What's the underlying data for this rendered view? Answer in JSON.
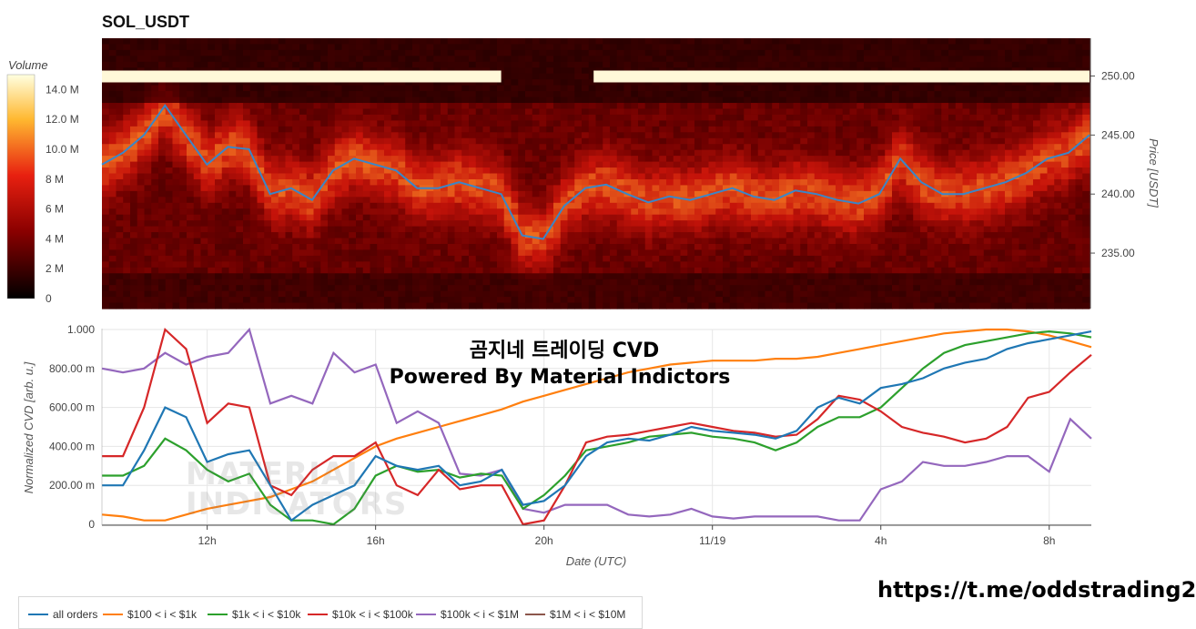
{
  "title": "SOL_USDT",
  "overlay": {
    "line1": "곰지네 트레이딩 CVD",
    "line2": "Powered By Material Indictors",
    "url": "https://t.me/oddstrading2",
    "watermark_line1": "MATERIAL",
    "watermark_line2": "INDICATORS"
  },
  "colors": {
    "price_line": "#3a86c8",
    "all_orders": "#1f77b4",
    "s100": "#ff7f0e",
    "s1k": "#2ca02c",
    "s10k": "#d62728",
    "s100k": "#9467bd",
    "s1m": "#8c564b"
  },
  "chart_data": [
    {
      "type": "heatmap",
      "title": "SOL_USDT",
      "colorbar_title": "Volume",
      "colorbar_ticks": [
        "14.0 M",
        "12.0 M",
        "10.0 M",
        "8 M",
        "6 M",
        "4 M",
        "2 M",
        "0"
      ],
      "colorbar_values": [
        14,
        12,
        10,
        8,
        6,
        4,
        2,
        0
      ],
      "ylabel": "Price [USDT]",
      "y_ticks": [
        "250.00",
        "245.00",
        "240.00",
        "235.00"
      ],
      "y_tick_values": [
        250,
        245,
        240,
        235
      ],
      "ylim": [
        230.3,
        253.2
      ],
      "x_range_hours": [
        9.5,
        33
      ],
      "bright_band_price": 250.0,
      "price_series": {
        "name": "price",
        "x": [
          9.5,
          10,
          10.5,
          11,
          11.5,
          12,
          12.5,
          13,
          13.5,
          14,
          14.5,
          15,
          15.5,
          16,
          16.5,
          17,
          17.5,
          18,
          18.5,
          19,
          19.5,
          20,
          20.5,
          21,
          21.5,
          22,
          22.5,
          23,
          23.5,
          24,
          24.5,
          25,
          25.5,
          26,
          26.5,
          27,
          27.5,
          28,
          28.5,
          29,
          29.5,
          30,
          30.5,
          31,
          31.5,
          32,
          32.5,
          33
        ],
        "y": [
          242.5,
          243.5,
          245,
          247.5,
          245,
          242.5,
          244,
          243.8,
          240,
          240.5,
          239.5,
          242,
          243,
          242.5,
          242,
          240.5,
          240.5,
          241,
          240.5,
          240,
          236.5,
          236.2,
          239,
          240.5,
          240.8,
          240,
          239.3,
          239.8,
          239.5,
          240,
          240.5,
          239.8,
          239.5,
          240.3,
          240,
          239.5,
          239.2,
          240,
          243,
          241,
          240,
          240,
          240.5,
          241,
          241.8,
          243,
          243.5,
          245
        ]
      }
    },
    {
      "type": "line",
      "xlabel": "Date (UTC)",
      "ylabel": "Normalized CVD [arb. u.]",
      "x_ticks": [
        "12h",
        "16h",
        "20h",
        "11/19",
        "4h",
        "8h"
      ],
      "x_tick_values": [
        12,
        16,
        20,
        24,
        28,
        32
      ],
      "y_ticks": [
        "1.000",
        "800.00 m",
        "600.00 m",
        "400.00 m",
        "200.00 m",
        "0"
      ],
      "y_tick_values": [
        1.0,
        0.8,
        0.6,
        0.4,
        0.2,
        0
      ],
      "ylim": [
        0,
        1
      ],
      "xlim": [
        9.5,
        33
      ],
      "series": [
        {
          "name": "all orders",
          "x": [
            9.5,
            10,
            10.5,
            11,
            11.5,
            12,
            12.5,
            13,
            13.5,
            14,
            14.5,
            15,
            15.5,
            16,
            16.5,
            17,
            17.5,
            18,
            18.5,
            19,
            19.5,
            20,
            20.5,
            21,
            21.5,
            22,
            22.5,
            23,
            23.5,
            24,
            24.5,
            25,
            25.5,
            26,
            26.5,
            27,
            27.5,
            28,
            28.5,
            29,
            29.5,
            30,
            30.5,
            31,
            31.5,
            32,
            32.5,
            33
          ],
          "y": [
            0.2,
            0.2,
            0.38,
            0.6,
            0.55,
            0.32,
            0.36,
            0.38,
            0.2,
            0.02,
            0.1,
            0.15,
            0.2,
            0.35,
            0.3,
            0.28,
            0.3,
            0.2,
            0.22,
            0.28,
            0.1,
            0.12,
            0.2,
            0.35,
            0.42,
            0.44,
            0.43,
            0.46,
            0.5,
            0.48,
            0.47,
            0.46,
            0.44,
            0.48,
            0.6,
            0.65,
            0.62,
            0.7,
            0.72,
            0.75,
            0.8,
            0.83,
            0.85,
            0.9,
            0.93,
            0.95,
            0.97,
            0.99
          ]
        },
        {
          "name": "$100 < i < $1k",
          "x": [
            9.5,
            10,
            10.5,
            11,
            11.5,
            12,
            12.5,
            13,
            13.5,
            14,
            14.5,
            15,
            15.5,
            16,
            16.5,
            17,
            17.5,
            18,
            18.5,
            19,
            19.5,
            20,
            20.5,
            21,
            21.5,
            22,
            22.5,
            23,
            23.5,
            24,
            24.5,
            25,
            25.5,
            26,
            26.5,
            27,
            27.5,
            28,
            28.5,
            29,
            29.5,
            30,
            30.5,
            31,
            31.5,
            32,
            32.5,
            33
          ],
          "y": [
            0.05,
            0.04,
            0.02,
            0.02,
            0.05,
            0.08,
            0.1,
            0.12,
            0.14,
            0.18,
            0.22,
            0.28,
            0.34,
            0.4,
            0.44,
            0.47,
            0.5,
            0.53,
            0.56,
            0.59,
            0.63,
            0.66,
            0.69,
            0.72,
            0.75,
            0.78,
            0.8,
            0.82,
            0.83,
            0.84,
            0.84,
            0.84,
            0.85,
            0.85,
            0.86,
            0.88,
            0.9,
            0.92,
            0.94,
            0.96,
            0.98,
            0.99,
            1.0,
            1.0,
            0.99,
            0.97,
            0.94,
            0.91
          ]
        },
        {
          "name": "$1k < i < $10k",
          "x": [
            9.5,
            10,
            10.5,
            11,
            11.5,
            12,
            12.5,
            13,
            13.5,
            14,
            14.5,
            15,
            15.5,
            16,
            16.5,
            17,
            17.5,
            18,
            18.5,
            19,
            19.5,
            20,
            20.5,
            21,
            21.5,
            22,
            22.5,
            23,
            23.5,
            24,
            24.5,
            25,
            25.5,
            26,
            26.5,
            27,
            27.5,
            28,
            28.5,
            29,
            29.5,
            30,
            30.5,
            31,
            31.5,
            32,
            32.5,
            33
          ],
          "y": [
            0.25,
            0.25,
            0.3,
            0.44,
            0.38,
            0.28,
            0.22,
            0.26,
            0.1,
            0.02,
            0.02,
            0.0,
            0.08,
            0.25,
            0.3,
            0.27,
            0.28,
            0.24,
            0.26,
            0.25,
            0.08,
            0.15,
            0.25,
            0.38,
            0.4,
            0.42,
            0.45,
            0.46,
            0.47,
            0.45,
            0.44,
            0.42,
            0.38,
            0.42,
            0.5,
            0.55,
            0.55,
            0.6,
            0.7,
            0.8,
            0.88,
            0.92,
            0.94,
            0.96,
            0.98,
            0.99,
            0.98,
            0.96
          ]
        },
        {
          "name": "$10k < i < $100k",
          "x": [
            9.5,
            10,
            10.5,
            11,
            11.5,
            12,
            12.5,
            13,
            13.5,
            14,
            14.5,
            15,
            15.5,
            16,
            16.5,
            17,
            17.5,
            18,
            18.5,
            19,
            19.5,
            20,
            20.5,
            21,
            21.5,
            22,
            22.5,
            23,
            23.5,
            24,
            24.5,
            25,
            25.5,
            26,
            26.5,
            27,
            27.5,
            28,
            28.5,
            29,
            29.5,
            30,
            30.5,
            31,
            31.5,
            32,
            32.5,
            33
          ],
          "y": [
            0.35,
            0.35,
            0.6,
            1.0,
            0.9,
            0.52,
            0.62,
            0.6,
            0.2,
            0.15,
            0.28,
            0.35,
            0.35,
            0.42,
            0.2,
            0.15,
            0.28,
            0.18,
            0.2,
            0.2,
            0.0,
            0.02,
            0.2,
            0.42,
            0.45,
            0.46,
            0.48,
            0.5,
            0.52,
            0.5,
            0.48,
            0.47,
            0.45,
            0.46,
            0.54,
            0.66,
            0.64,
            0.58,
            0.5,
            0.47,
            0.45,
            0.42,
            0.44,
            0.5,
            0.65,
            0.68,
            0.78,
            0.87
          ]
        },
        {
          "name": "$100k < i < $1M",
          "x": [
            9.5,
            10,
            10.5,
            11,
            11.5,
            12,
            12.5,
            13,
            13.5,
            14,
            14.5,
            15,
            15.5,
            16,
            16.5,
            17,
            17.5,
            18,
            18.5,
            19,
            19.5,
            20,
            20.5,
            21,
            21.5,
            22,
            22.5,
            23,
            23.5,
            24,
            24.5,
            25,
            25.5,
            26,
            26.5,
            27,
            27.5,
            28,
            28.5,
            29,
            29.5,
            30,
            30.5,
            31,
            31.5,
            32,
            32.5,
            33
          ],
          "y": [
            0.8,
            0.78,
            0.8,
            0.88,
            0.82,
            0.86,
            0.88,
            1.0,
            0.62,
            0.66,
            0.62,
            0.88,
            0.78,
            0.82,
            0.52,
            0.58,
            0.52,
            0.26,
            0.25,
            0.28,
            0.08,
            0.06,
            0.1,
            0.1,
            0.1,
            0.05,
            0.04,
            0.05,
            0.08,
            0.04,
            0.03,
            0.04,
            0.04,
            0.04,
            0.04,
            0.02,
            0.02,
            0.18,
            0.22,
            0.32,
            0.3,
            0.3,
            0.32,
            0.35,
            0.35,
            0.27,
            0.54,
            0.44
          ]
        },
        {
          "name": "$1M < i < $10M",
          "x": [],
          "y": []
        }
      ]
    }
  ]
}
